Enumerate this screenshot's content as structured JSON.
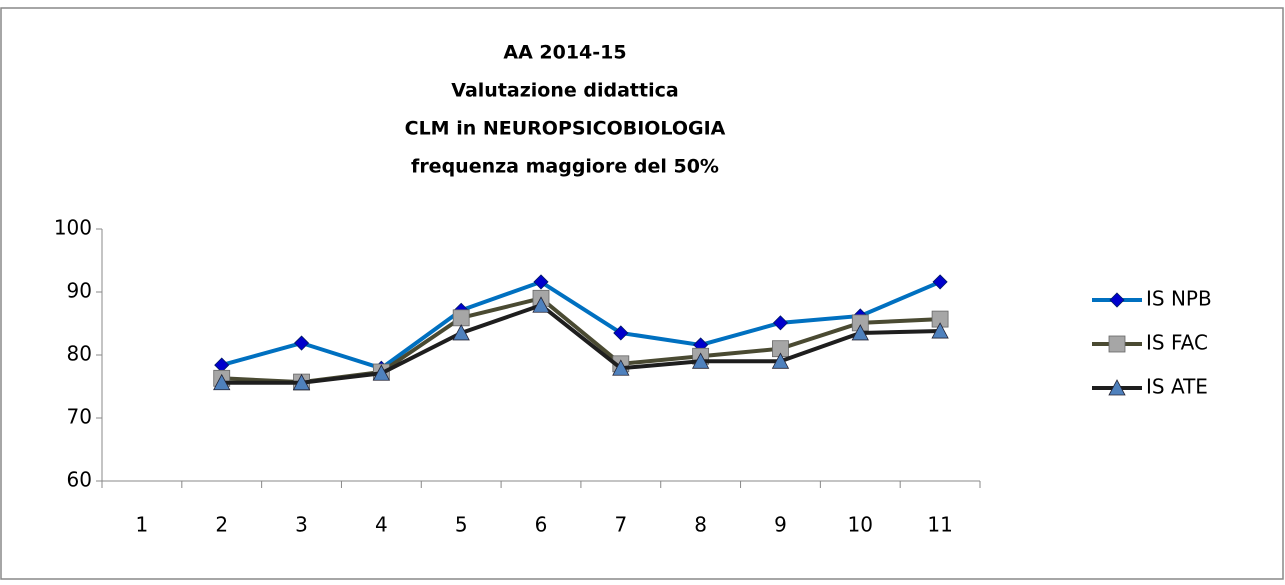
{
  "chart_data": {
    "type": "line",
    "title": [
      "AA 2014-15",
      "Valutazione didattica",
      "CLM in NEUROPSICOBIOLOGIA",
      "frequenza maggiore del 50%"
    ],
    "categories": [
      "1",
      "2",
      "3",
      "4",
      "5",
      "6",
      "7",
      "8",
      "9",
      "10",
      "11"
    ],
    "series": [
      {
        "name": "IS NPB",
        "color": "#0070C0",
        "marker": "diamond",
        "marker_color": "#0000CC",
        "values": [
          null,
          78.4,
          81.9,
          77.9,
          87.1,
          91.6,
          83.5,
          81.6,
          85.1,
          86.2,
          91.6
        ]
      },
      {
        "name": "IS FAC",
        "color": "#4A4A32",
        "marker": "square",
        "marker_color": "#A6A6A6",
        "values": [
          null,
          76.3,
          75.7,
          77.3,
          85.9,
          89.0,
          78.6,
          79.8,
          81.0,
          85.1,
          85.7
        ]
      },
      {
        "name": "IS ATE",
        "color": "#1E1E1E",
        "marker": "triangle",
        "marker_color": "#4F81BD",
        "values": [
          null,
          75.6,
          75.6,
          77.1,
          83.5,
          87.9,
          77.9,
          79.0,
          79.0,
          83.5,
          83.8
        ]
      }
    ],
    "ylim": [
      60,
      100
    ],
    "yticks": [
      60,
      70,
      80,
      90,
      100
    ],
    "grid": false,
    "legend": "right"
  }
}
